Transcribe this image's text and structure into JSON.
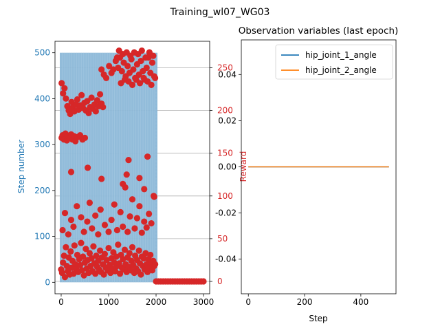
{
  "figure": {
    "suptitle": "Training_wl07_WG03"
  },
  "chart_data": [
    {
      "type": "scatter",
      "panel": "left",
      "title": "",
      "xlabel": "",
      "ylabel": "Step number",
      "y2label": "Reward",
      "xlim": [
        -130,
        3130
      ],
      "ylim": [
        -25,
        525
      ],
      "y2lim": [
        -14.5,
        281
      ],
      "xticks": [
        0,
        1000,
        2000,
        3000
      ],
      "yticks": [
        0,
        100,
        200,
        300,
        400,
        500
      ],
      "y2ticks": [
        0,
        50,
        100,
        150,
        200,
        250
      ],
      "grid": "y2-major",
      "series": [
        {
          "role": "step_number",
          "axis": "left",
          "color": "#8cb8d8",
          "note_shape": "dense vertical band 0-2000 spanning 0-500, sparse beyond",
          "x_range": [
            0,
            2000
          ],
          "y_range": [
            0,
            500
          ]
        },
        {
          "role": "reward",
          "axis": "right",
          "color": "#d62728",
          "points": [
            [
              0,
              14
            ],
            [
              20,
              10
            ],
            [
              40,
              22
            ],
            [
              60,
              30
            ],
            [
              80,
              5
            ],
            [
              100,
              40
            ],
            [
              120,
              18
            ],
            [
              140,
              12
            ],
            [
              160,
              28
            ],
            [
              180,
              8
            ],
            [
              200,
              35
            ],
            [
              220,
              16
            ],
            [
              240,
              24
            ],
            [
              260,
              9
            ],
            [
              280,
              42
            ],
            [
              300,
              20
            ],
            [
              320,
              14
            ],
            [
              340,
              31
            ],
            [
              360,
              11
            ],
            [
              380,
              26
            ],
            [
              400,
              19
            ],
            [
              420,
              45
            ],
            [
              440,
              13
            ],
            [
              460,
              29
            ],
            [
              480,
              7
            ],
            [
              500,
              22
            ],
            [
              520,
              38
            ],
            [
              540,
              15
            ],
            [
              560,
              25
            ],
            [
              580,
              10
            ],
            [
              600,
              33
            ],
            [
              620,
              18
            ],
            [
              640,
              27
            ],
            [
              660,
              12
            ],
            [
              680,
              41
            ],
            [
              700,
              21
            ],
            [
              720,
              9
            ],
            [
              740,
              30
            ],
            [
              760,
              17
            ],
            [
              780,
              24
            ],
            [
              800,
              14
            ],
            [
              820,
              36
            ],
            [
              840,
              11
            ],
            [
              860,
              28
            ],
            [
              880,
              20
            ],
            [
              900,
              8
            ],
            [
              920,
              32
            ],
            [
              940,
              16
            ],
            [
              960,
              25
            ],
            [
              980,
              13
            ],
            [
              1000,
              39
            ],
            [
              1020,
              19
            ],
            [
              1040,
              10
            ],
            [
              1060,
              27
            ],
            [
              1080,
              15
            ],
            [
              1100,
              34
            ],
            [
              1120,
              22
            ],
            [
              1140,
              12
            ],
            [
              1160,
              29
            ],
            [
              1180,
              18
            ],
            [
              1200,
              43
            ],
            [
              1220,
              21
            ],
            [
              1240,
              9
            ],
            [
              1260,
              31
            ],
            [
              1280,
              16
            ],
            [
              1300,
              26
            ],
            [
              1320,
              14
            ],
            [
              1340,
              37
            ],
            [
              1360,
              20
            ],
            [
              1380,
              11
            ],
            [
              1400,
              28
            ],
            [
              1420,
              17
            ],
            [
              1440,
              33
            ],
            [
              1460,
              13
            ],
            [
              1480,
              24
            ],
            [
              1500,
              40
            ],
            [
              1520,
              19
            ],
            [
              1540,
              10
            ],
            [
              1560,
              30
            ],
            [
              1580,
              15
            ],
            [
              1600,
              25
            ],
            [
              1620,
              12
            ],
            [
              1640,
              36
            ],
            [
              1660,
              21
            ],
            [
              1680,
              8
            ],
            [
              1700,
              29
            ],
            [
              1720,
              18
            ],
            [
              1740,
              27
            ],
            [
              1760,
              14
            ],
            [
              1780,
              33
            ],
            [
              1800,
              20
            ],
            [
              1820,
              11
            ],
            [
              1840,
              26
            ],
            [
              1860,
              16
            ],
            [
              1880,
              31
            ],
            [
              1900,
              22
            ],
            [
              1920,
              13
            ],
            [
              1940,
              24
            ],
            [
              1960,
              18
            ],
            [
              1980,
              20
            ],
            [
              10,
              232
            ],
            [
              40,
              220
            ],
            [
              70,
              226
            ],
            [
              100,
              214
            ],
            [
              130,
              205
            ],
            [
              160,
              200
            ],
            [
              190,
              196
            ],
            [
              220,
              210
            ],
            [
              250,
              204
            ],
            [
              280,
              199
            ],
            [
              310,
              207
            ],
            [
              340,
              213
            ],
            [
              370,
              201
            ],
            [
              400,
              206
            ],
            [
              430,
              218
            ],
            [
              460,
              203
            ],
            [
              490,
              209
            ],
            [
              520,
              200
            ],
            [
              550,
              211
            ],
            [
              580,
              197
            ],
            [
              610,
              204
            ],
            [
              640,
              215
            ],
            [
              670,
              202
            ],
            [
              700,
              207
            ],
            [
              730,
              199
            ],
            [
              760,
              212
            ],
            [
              790,
              205
            ],
            [
              820,
              219
            ],
            [
              850,
              208
            ],
            [
              880,
              204
            ],
            [
              10,
              168
            ],
            [
              30,
              171
            ],
            [
              60,
              166
            ],
            [
              90,
              173
            ],
            [
              120,
              165
            ],
            [
              150,
              170
            ],
            [
              180,
              168
            ],
            [
              210,
              172
            ],
            [
              240,
              166
            ],
            [
              270,
              170
            ],
            [
              300,
              164
            ],
            [
              350,
              169
            ],
            [
              400,
              171
            ],
            [
              450,
              166
            ],
            [
              500,
              168
            ],
            [
              1200,
              250
            ],
            [
              1240,
              262
            ],
            [
              1280,
              246
            ],
            [
              1320,
              256
            ],
            [
              1360,
              240
            ],
            [
              1400,
              252
            ],
            [
              1440,
              244
            ],
            [
              1480,
              260
            ],
            [
              1520,
              248
            ],
            [
              1560,
              238
            ],
            [
              1600,
              254
            ],
            [
              1640,
              242
            ],
            [
              1680,
              258
            ],
            [
              1720,
              246
            ],
            [
              1760,
              236
            ],
            [
              1800,
              250
            ],
            [
              1840,
              262
            ],
            [
              1880,
              244
            ],
            [
              1920,
              256
            ],
            [
              1960,
              240
            ],
            [
              1220,
              270
            ],
            [
              1260,
              232
            ],
            [
              1300,
              266
            ],
            [
              1340,
              236
            ],
            [
              1380,
              268
            ],
            [
              1420,
              234
            ],
            [
              1460,
              264
            ],
            [
              1500,
              230
            ],
            [
              1540,
              268
            ],
            [
              1580,
              236
            ],
            [
              1620,
              266
            ],
            [
              1660,
              232
            ],
            [
              1700,
              270
            ],
            [
              1740,
              238
            ],
            [
              1780,
              262
            ],
            [
              1820,
              234
            ],
            [
              1860,
              268
            ],
            [
              1900,
              230
            ],
            [
              1940,
              264
            ],
            [
              1980,
              238
            ],
            [
              1150,
              258
            ],
            [
              1180,
              262
            ],
            [
              1100,
              248
            ],
            [
              1060,
              244
            ],
            [
              1010,
              252
            ],
            [
              950,
              238
            ],
            [
              900,
              242
            ],
            [
              850,
              248
            ],
            [
              30,
              60
            ],
            [
              80,
              80
            ],
            [
              150,
              55
            ],
            [
              210,
              72
            ],
            [
              260,
              64
            ],
            [
              330,
              88
            ],
            [
              420,
              75
            ],
            [
              480,
              58
            ],
            [
              550,
              70
            ],
            [
              600,
              92
            ],
            [
              650,
              62
            ],
            [
              720,
              77
            ],
            [
              780,
              55
            ],
            [
              830,
              84
            ],
            [
              920,
              66
            ],
            [
              1000,
              58
            ],
            [
              1060,
              72
            ],
            [
              1120,
              90
            ],
            [
              1180,
              60
            ],
            [
              1250,
              81
            ],
            [
              1300,
              64
            ],
            [
              1350,
              110
            ],
            [
              1400,
              58
            ],
            [
              1450,
              76
            ],
            [
              1500,
              96
            ],
            [
              1550,
              62
            ],
            [
              1600,
              74
            ],
            [
              1650,
              88
            ],
            [
              1700,
              57
            ],
            [
              1750,
              70
            ],
            [
              1800,
              63
            ],
            [
              1850,
              79
            ],
            [
              1900,
              68
            ],
            [
              1950,
              100
            ],
            [
              1380,
              125
            ],
            [
              1300,
              114
            ],
            [
              1420,
              142
            ],
            [
              850,
              120
            ],
            [
              560,
              133
            ],
            [
              1820,
              146
            ],
            [
              1960,
              99
            ],
            [
              1750,
              108
            ],
            [
              1650,
              121
            ],
            [
              210,
              128
            ],
            [
              2000,
              0
            ],
            [
              2050,
              0
            ],
            [
              2100,
              0
            ],
            [
              2150,
              0
            ],
            [
              2200,
              0
            ],
            [
              2250,
              0
            ],
            [
              2300,
              0
            ],
            [
              2350,
              0
            ],
            [
              2400,
              0
            ],
            [
              2450,
              0
            ],
            [
              2500,
              0
            ],
            [
              2550,
              0
            ],
            [
              2600,
              0
            ],
            [
              2650,
              0
            ],
            [
              2700,
              0
            ],
            [
              2750,
              0
            ],
            [
              2800,
              0
            ],
            [
              2850,
              0
            ],
            [
              2900,
              0
            ],
            [
              2950,
              0
            ],
            [
              3000,
              0
            ]
          ]
        }
      ]
    },
    {
      "type": "line",
      "panel": "right",
      "title": "Observation variables (last epoch)",
      "xlabel": "Step",
      "ylabel": "",
      "xlim": [
        -25,
        525
      ],
      "ylim": [
        -0.055,
        0.055
      ],
      "xticks": [
        0,
        200,
        400
      ],
      "yticks": [
        -0.04,
        -0.02,
        0.0,
        0.02,
        0.04
      ],
      "ytick_labels": [
        "-0.04",
        "-0.02",
        "0.00",
        "0.02",
        "0.04"
      ],
      "legend": "top-right",
      "series": [
        {
          "name": "hip_joint_1_angle",
          "color": "#1f77b4",
          "x": [
            0,
            500
          ],
          "y": [
            0.0,
            0.0
          ]
        },
        {
          "name": "hip_joint_2_angle",
          "color": "#ff7f0e",
          "x": [
            0,
            500
          ],
          "y": [
            0.0,
            0.0
          ]
        }
      ]
    }
  ]
}
